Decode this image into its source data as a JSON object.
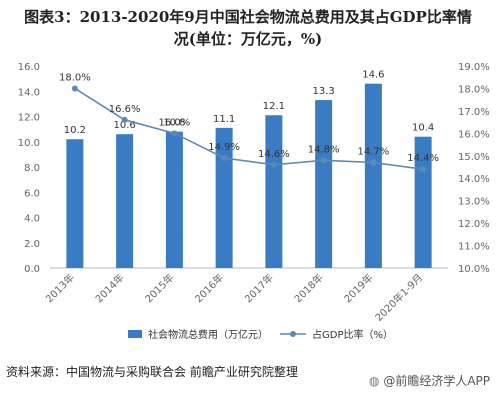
{
  "page": {
    "title_line1": "图表3：2013-2020年9月中国社会物流总费用及其占GDP比率情",
    "title_line2": "况(单位：万亿元，%)",
    "source": "资料来源：中国物流与采购联合会 前瞻产业研究院整理",
    "watermark": "@前瞻经济学人APP",
    "watermark_icon": "wechat-icon"
  },
  "chart_data": {
    "type": "bar",
    "categories": [
      "2013年",
      "2014年",
      "2015年",
      "2016年",
      "2017年",
      "2018年",
      "2019年",
      "2020年1-9月"
    ],
    "series": [
      {
        "name": "社会物流总费用（万亿元）",
        "type": "bar",
        "axis": "left",
        "values": [
          10.2,
          10.6,
          10.8,
          11.1,
          12.1,
          13.3,
          14.6,
          10.4
        ]
      },
      {
        "name": "占GDP比率（%）",
        "type": "line",
        "axis": "right",
        "values": [
          18.0,
          16.6,
          16.0,
          14.9,
          14.6,
          14.8,
          14.7,
          14.4
        ]
      }
    ],
    "data_labels_bar": [
      "10.2",
      "10.6",
      "10.8",
      "11.1",
      "12.1",
      "13.3",
      "14.6",
      "10.4"
    ],
    "data_labels_line": [
      "18.0%",
      "16.6%",
      "16.0%",
      "14.9%",
      "14.6%",
      "14.8%",
      "14.7%",
      "14.4%"
    ],
    "ylim_left": [
      0,
      16
    ],
    "yticks_left": [
      "0.0",
      "2.0",
      "4.0",
      "6.0",
      "8.0",
      "10.0",
      "12.0",
      "14.0",
      "16.0"
    ],
    "ylim_right": [
      10.0,
      19.0
    ],
    "yticks_right": [
      "10.0%",
      "11.0%",
      "12.0%",
      "13.0%",
      "14.0%",
      "15.0%",
      "16.0%",
      "17.0%",
      "18.0%",
      "19.0%"
    ],
    "grid": false,
    "legend_position": "bottom-center",
    "colors": {
      "bar": "#3a7cc4",
      "line": "#5a8ab8",
      "axis_text": "#666666",
      "label": "#333333"
    }
  }
}
